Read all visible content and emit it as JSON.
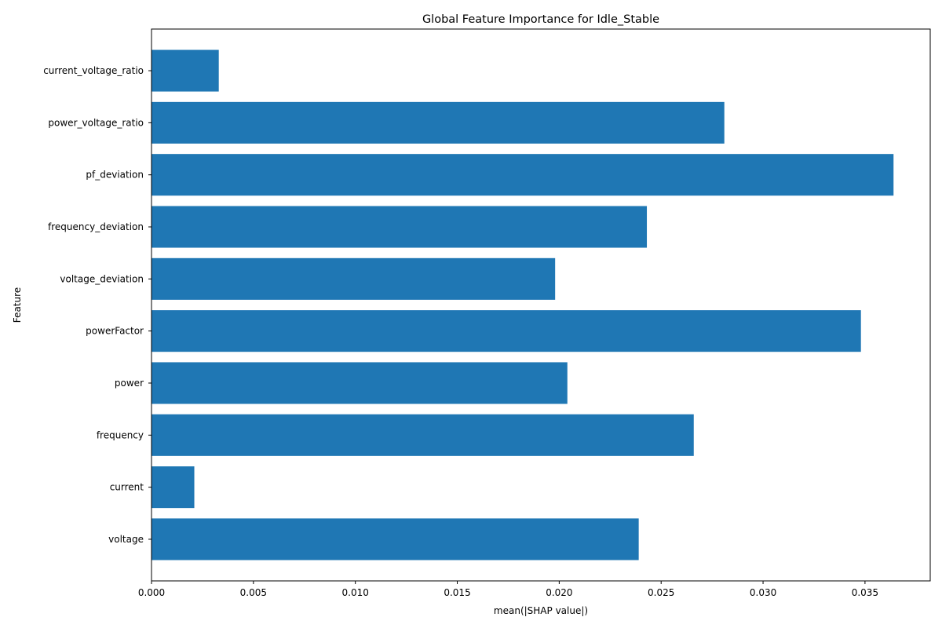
{
  "chart_data": {
    "type": "bar",
    "orientation": "horizontal",
    "title": "Global Feature Importance for Idle_Stable",
    "xlabel": "mean(|SHAP value|)",
    "ylabel": "Feature",
    "categories": [
      "voltage",
      "current",
      "frequency",
      "power",
      "powerFactor",
      "voltage_deviation",
      "frequency_deviation",
      "pf_deviation",
      "power_voltage_ratio",
      "current_voltage_ratio"
    ],
    "values": [
      0.0239,
      0.0021,
      0.0266,
      0.0204,
      0.0348,
      0.0198,
      0.0243,
      0.0364,
      0.0281,
      0.0033
    ],
    "xlim": [
      0,
      0.0382
    ],
    "xticks": [
      "0.000",
      "0.005",
      "0.010",
      "0.015",
      "0.020",
      "0.025",
      "0.030",
      "0.035"
    ],
    "bar_color": "#1f77b4",
    "grid": false,
    "legend": "none"
  }
}
